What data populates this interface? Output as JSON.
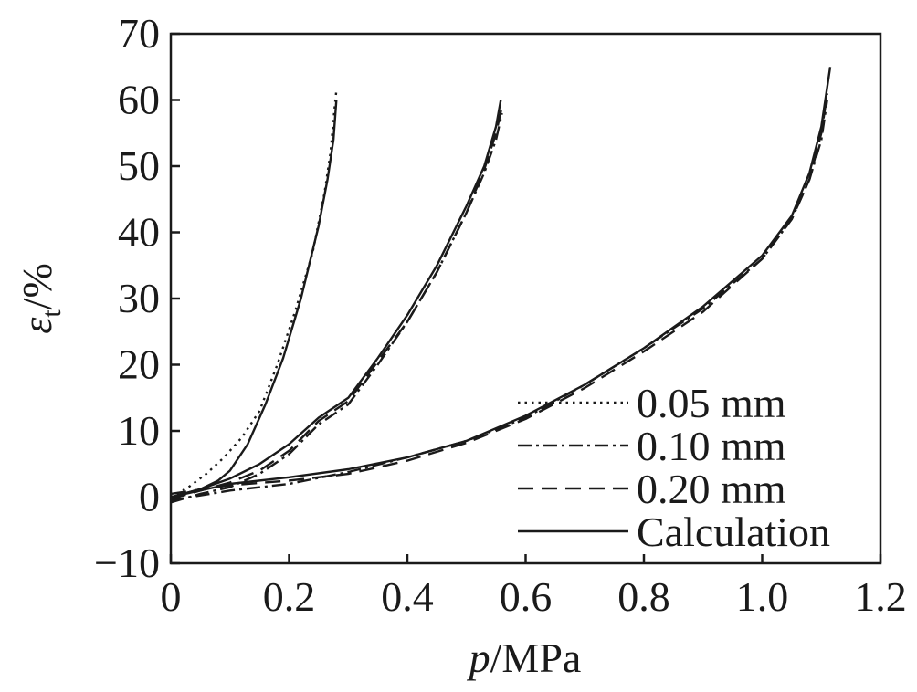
{
  "chart_data": {
    "type": "line",
    "xlabel": {
      "italic": "p",
      "rest": "/MPa"
    },
    "ylabel": {
      "symbol": "ε",
      "subscript": "t",
      "rest": "/%"
    },
    "xlim": [
      0,
      1.2
    ],
    "ylim": [
      -10,
      70
    ],
    "xticks": [
      0,
      0.2,
      0.4,
      0.6,
      0.8,
      1.0,
      1.2
    ],
    "xtick_labels": [
      "0",
      "0.2",
      "0.4",
      "0.6",
      "0.8",
      "1.0",
      "1.2"
    ],
    "yticks": [
      -10,
      0,
      10,
      20,
      30,
      40,
      50,
      60,
      70
    ],
    "ytick_labels": [
      "−10",
      "0",
      "10",
      "20",
      "30",
      "40",
      "50",
      "60",
      "70"
    ],
    "grid": false,
    "legend_position": "bottom-right",
    "legend": [
      {
        "label": "0.05 mm",
        "style": "dotted"
      },
      {
        "label": "0.10 mm",
        "style": "dashdot"
      },
      {
        "label": "0.20 mm",
        "style": "dashed"
      },
      {
        "label": "Calculation",
        "style": "solid"
      }
    ],
    "series": [
      {
        "name": "0.05 mm",
        "style": "dotted",
        "x": [
          0,
          0.03,
          0.06,
          0.09,
          0.12,
          0.15,
          0.18,
          0.21,
          0.24,
          0.26,
          0.27,
          0.275,
          0.28
        ],
        "y": [
          0,
          1.5,
          3.5,
          6,
          9,
          13,
          20,
          28,
          37,
          46,
          52,
          57,
          61.5
        ]
      },
      {
        "name": "Calculation",
        "style": "solid",
        "x": [
          0,
          0.05,
          0.08,
          0.1,
          0.13,
          0.16,
          0.19,
          0.22,
          0.25,
          0.265,
          0.275,
          0.28
        ],
        "y": [
          0,
          1.2,
          2.5,
          4,
          8,
          14,
          21,
          30,
          41,
          48,
          54,
          60
        ]
      },
      {
        "name": "0.10 mm",
        "style": "dashdot",
        "x": [
          0,
          0.05,
          0.1,
          0.15,
          0.2,
          0.25,
          0.3,
          0.35,
          0.4,
          0.45,
          0.5,
          0.53,
          0.55,
          0.56
        ],
        "y": [
          -0.8,
          0.5,
          1.5,
          3.5,
          6.5,
          11,
          14,
          20,
          26.5,
          34,
          43,
          49,
          54,
          58
        ]
      },
      {
        "name": "0.20 mm",
        "style": "dashed",
        "x": [
          0,
          0.05,
          0.1,
          0.15,
          0.2,
          0.25,
          0.3,
          0.35,
          0.4,
          0.45,
          0.5,
          0.53,
          0.55,
          0.56
        ],
        "y": [
          -0.3,
          1,
          2.2,
          4,
          7,
          11.5,
          14.5,
          20.5,
          26.5,
          34,
          43,
          49.5,
          55,
          59
        ]
      },
      {
        "name": "Calculation",
        "style": "solid",
        "x": [
          0,
          0.05,
          0.1,
          0.15,
          0.2,
          0.25,
          0.3,
          0.35,
          0.4,
          0.45,
          0.5,
          0.53,
          0.55,
          0.558
        ],
        "y": [
          0,
          1.2,
          2.8,
          5,
          8,
          12,
          15,
          21,
          27.5,
          35,
          44,
          50,
          56,
          60
        ]
      },
      {
        "name": "0.10 mm",
        "style": "dashdot",
        "x": [
          0,
          0.1,
          0.2,
          0.3,
          0.4,
          0.5,
          0.6,
          0.7,
          0.8,
          0.9,
          1.0,
          1.05,
          1.08,
          1.1,
          1.11
        ],
        "y": [
          -0.5,
          1,
          2,
          3.8,
          6,
          8.5,
          12,
          17,
          22.5,
          28.5,
          36,
          42,
          48,
          54,
          60
        ]
      },
      {
        "name": "0.20 mm",
        "style": "dashed",
        "x": [
          0,
          0.1,
          0.2,
          0.3,
          0.4,
          0.5,
          0.6,
          0.7,
          0.8,
          0.9,
          1.0,
          1.05,
          1.08,
          1.1,
          1.11
        ],
        "y": [
          0.5,
          1.8,
          2.5,
          3.5,
          5.5,
          8.2,
          11.8,
          16.5,
          22,
          28,
          36,
          42,
          48,
          55,
          61
        ]
      },
      {
        "name": "Calculation",
        "style": "solid",
        "x": [
          0,
          0.1,
          0.2,
          0.3,
          0.4,
          0.5,
          0.6,
          0.7,
          0.8,
          0.9,
          1.0,
          1.05,
          1.08,
          1.1,
          1.115
        ],
        "y": [
          0,
          2,
          3,
          4.2,
          6,
          8.5,
          12.3,
          17,
          22.5,
          28.8,
          36.5,
          42.5,
          49,
          56,
          65
        ]
      }
    ]
  }
}
